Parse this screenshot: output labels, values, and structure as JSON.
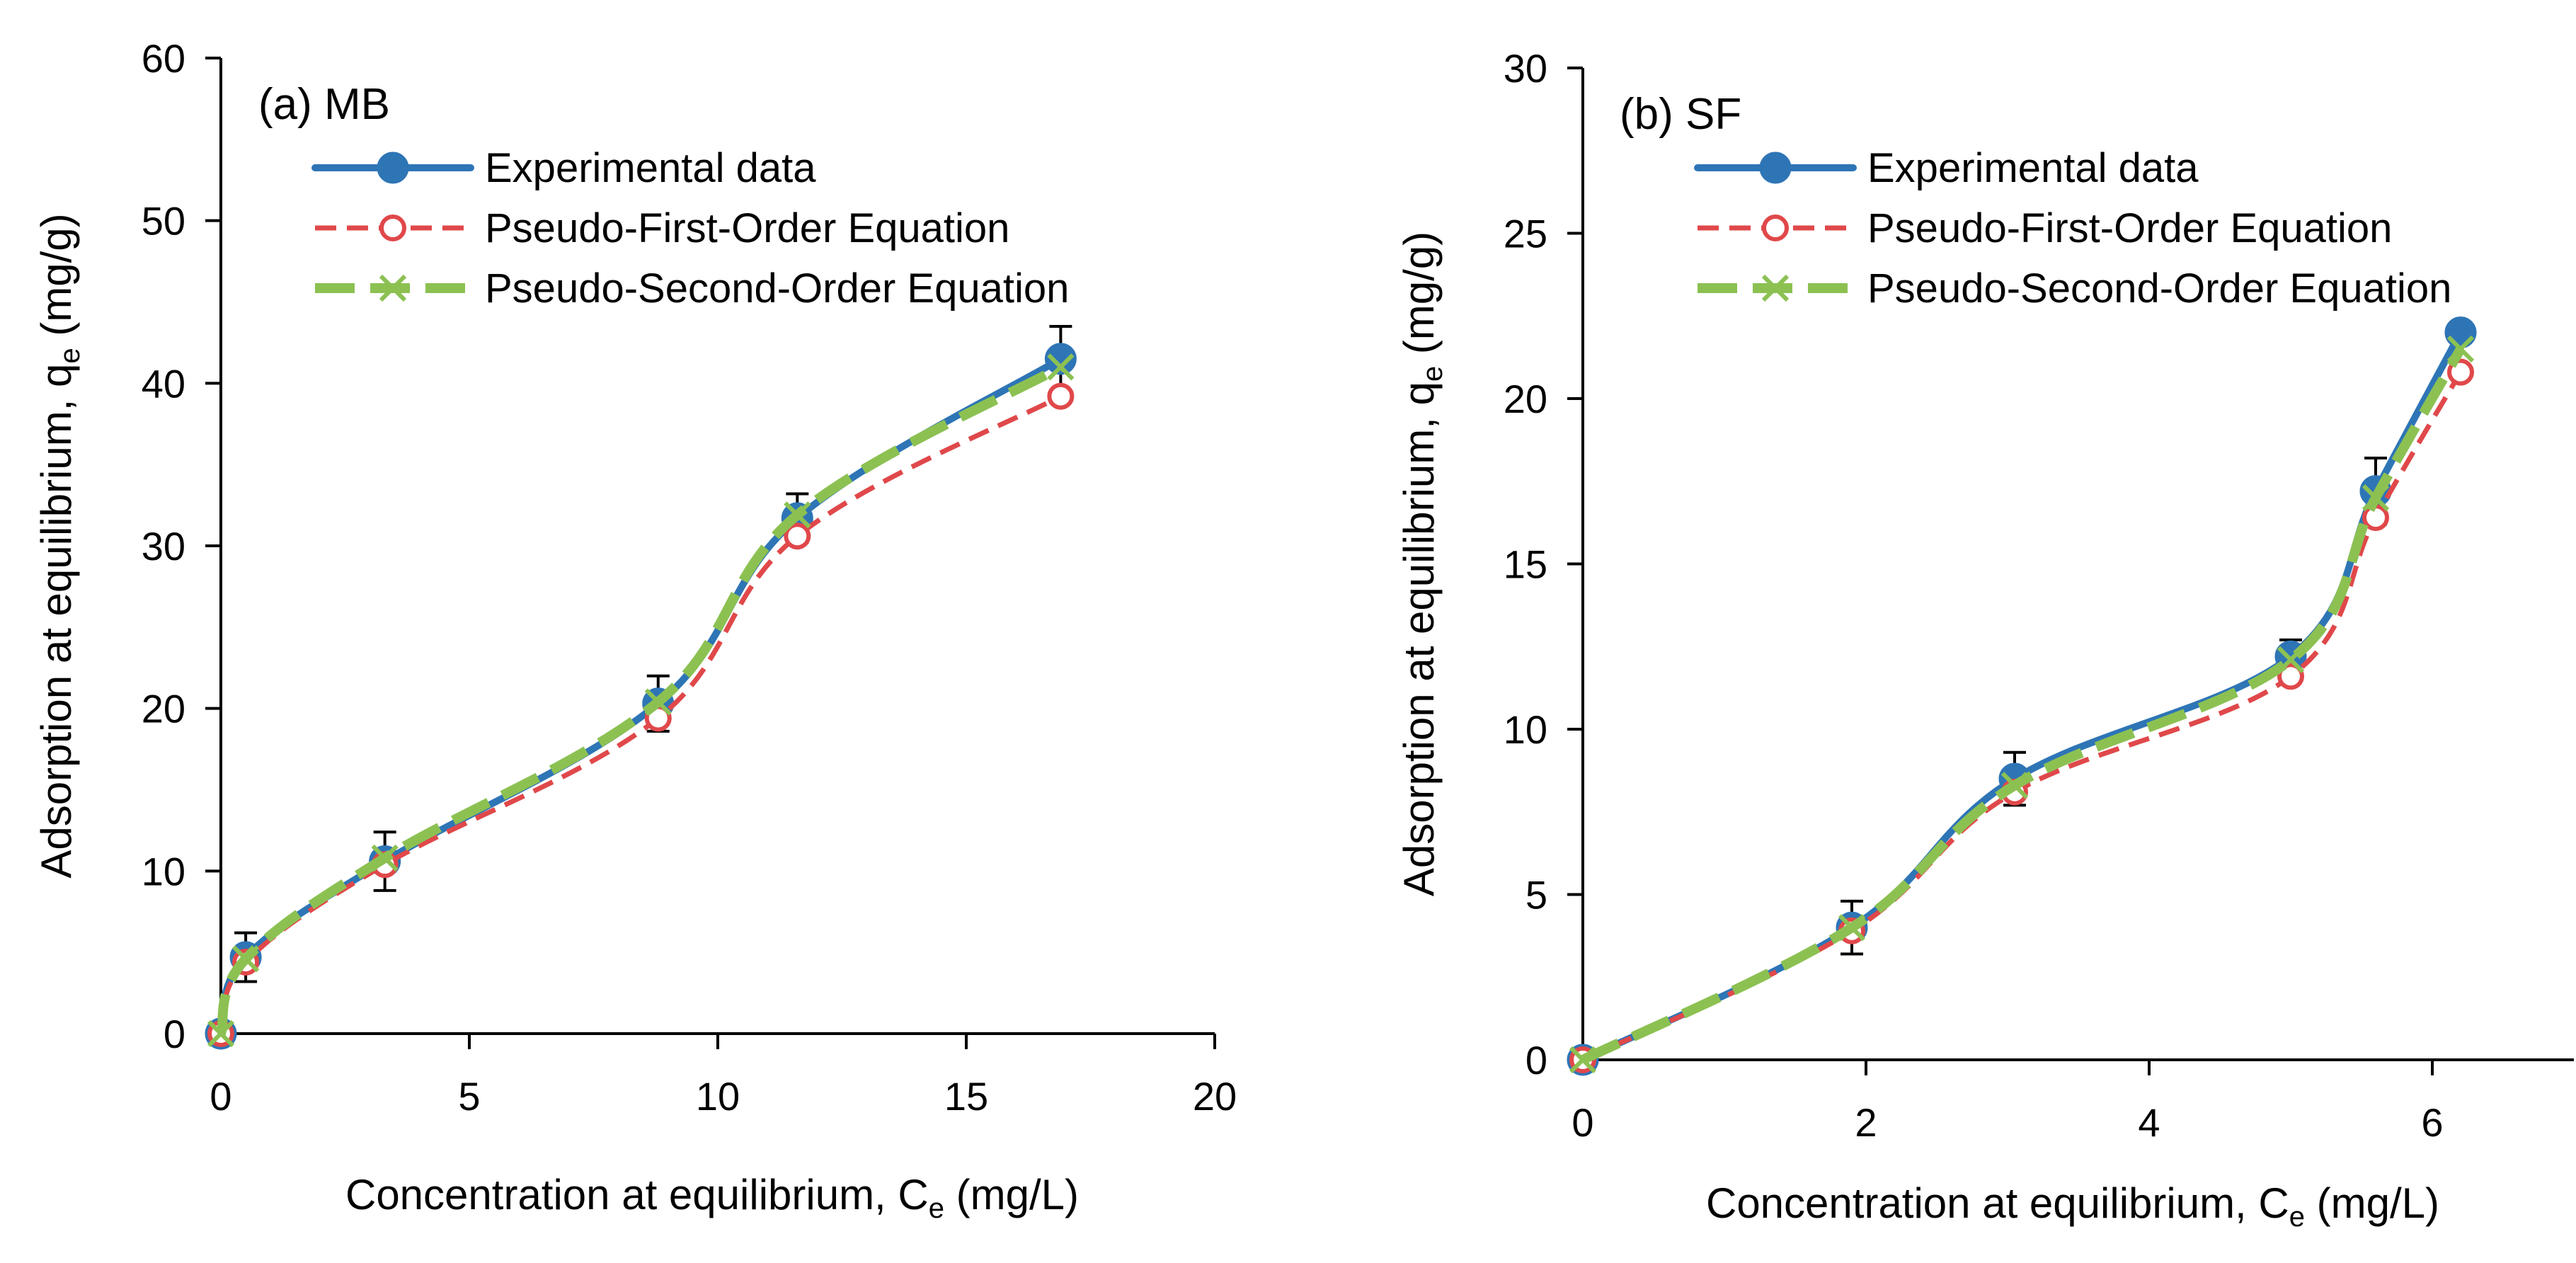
{
  "chart_data": [
    {
      "type": "line",
      "panel_label": "(a) MB",
      "xlabel": {
        "main": "Concentration at equilibrium, C",
        "sub": "e",
        "unit": " (mg/L)"
      },
      "ylabel": {
        "main": "Adsorption at equilibrium, q",
        "sub": "e",
        "unit": " (mg/g)"
      },
      "xlim": [
        0,
        20
      ],
      "ylim": [
        0,
        60
      ],
      "xticks": [
        0,
        5,
        10,
        15,
        20
      ],
      "yticks": [
        0,
        10,
        20,
        30,
        40,
        50,
        60
      ],
      "legend_position": "top-left",
      "grid": false,
      "series": [
        {
          "name": "Experimental data",
          "style": "experimental",
          "color": "#2E75B6",
          "x": [
            0,
            0.5,
            3.3,
            8.8,
            11.6,
            16.9
          ],
          "y": [
            0,
            4.7,
            10.6,
            20.3,
            31.7,
            41.5
          ],
          "error": [
            0,
            1.5,
            1.8,
            1.7,
            1.5,
            2.0
          ]
        },
        {
          "name": "Pseudo-First-Order Equation",
          "style": "pfo",
          "color": "#E0484A",
          "x": [
            0,
            0.5,
            3.3,
            8.8,
            11.6,
            16.9
          ],
          "y": [
            0,
            4.4,
            10.4,
            19.4,
            30.6,
            39.2
          ]
        },
        {
          "name": "Pseudo-Second-Order Equation",
          "style": "pso",
          "color": "#8CC152",
          "x": [
            0,
            0.5,
            3.3,
            8.8,
            11.6,
            16.9
          ],
          "y": [
            0,
            4.6,
            10.8,
            20.4,
            31.9,
            41.0
          ]
        }
      ]
    },
    {
      "type": "line",
      "panel_label": "(b) SF",
      "xlabel": {
        "main": "Concentration at equilibrium, C",
        "sub": "e",
        "unit": " (mg/L)"
      },
      "ylabel": {
        "main": "Adsorption at equilibrium, q",
        "sub": "e",
        "unit": " (mg/g)"
      },
      "xlim": [
        0,
        7
      ],
      "ylim": [
        0,
        30
      ],
      "xticks": [
        0,
        2,
        4,
        6
      ],
      "yticks": [
        0,
        5,
        10,
        15,
        20,
        25,
        30
      ],
      "legend_position": "top-left",
      "grid": false,
      "series": [
        {
          "name": "Experimental data",
          "style": "experimental",
          "color": "#2E75B6",
          "x": [
            0,
            1.9,
            3.05,
            5.0,
            5.6,
            6.2
          ],
          "y": [
            0,
            4.0,
            8.5,
            12.2,
            17.2,
            22.0
          ],
          "error": [
            0,
            0.8,
            0.8,
            0.5,
            1.0,
            0.3
          ]
        },
        {
          "name": "Pseudo-First-Order Equation",
          "style": "pfo",
          "color": "#E0484A",
          "x": [
            0,
            1.9,
            3.05,
            5.0,
            5.6,
            6.2
          ],
          "y": [
            0,
            3.9,
            8.1,
            11.6,
            16.4,
            20.8
          ]
        },
        {
          "name": "Pseudo-Second-Order Equation",
          "style": "pso",
          "color": "#8CC152",
          "x": [
            0,
            1.9,
            3.05,
            5.0,
            5.6,
            6.2
          ],
          "y": [
            0,
            4.0,
            8.3,
            12.1,
            17.0,
            21.5
          ]
        }
      ]
    }
  ]
}
